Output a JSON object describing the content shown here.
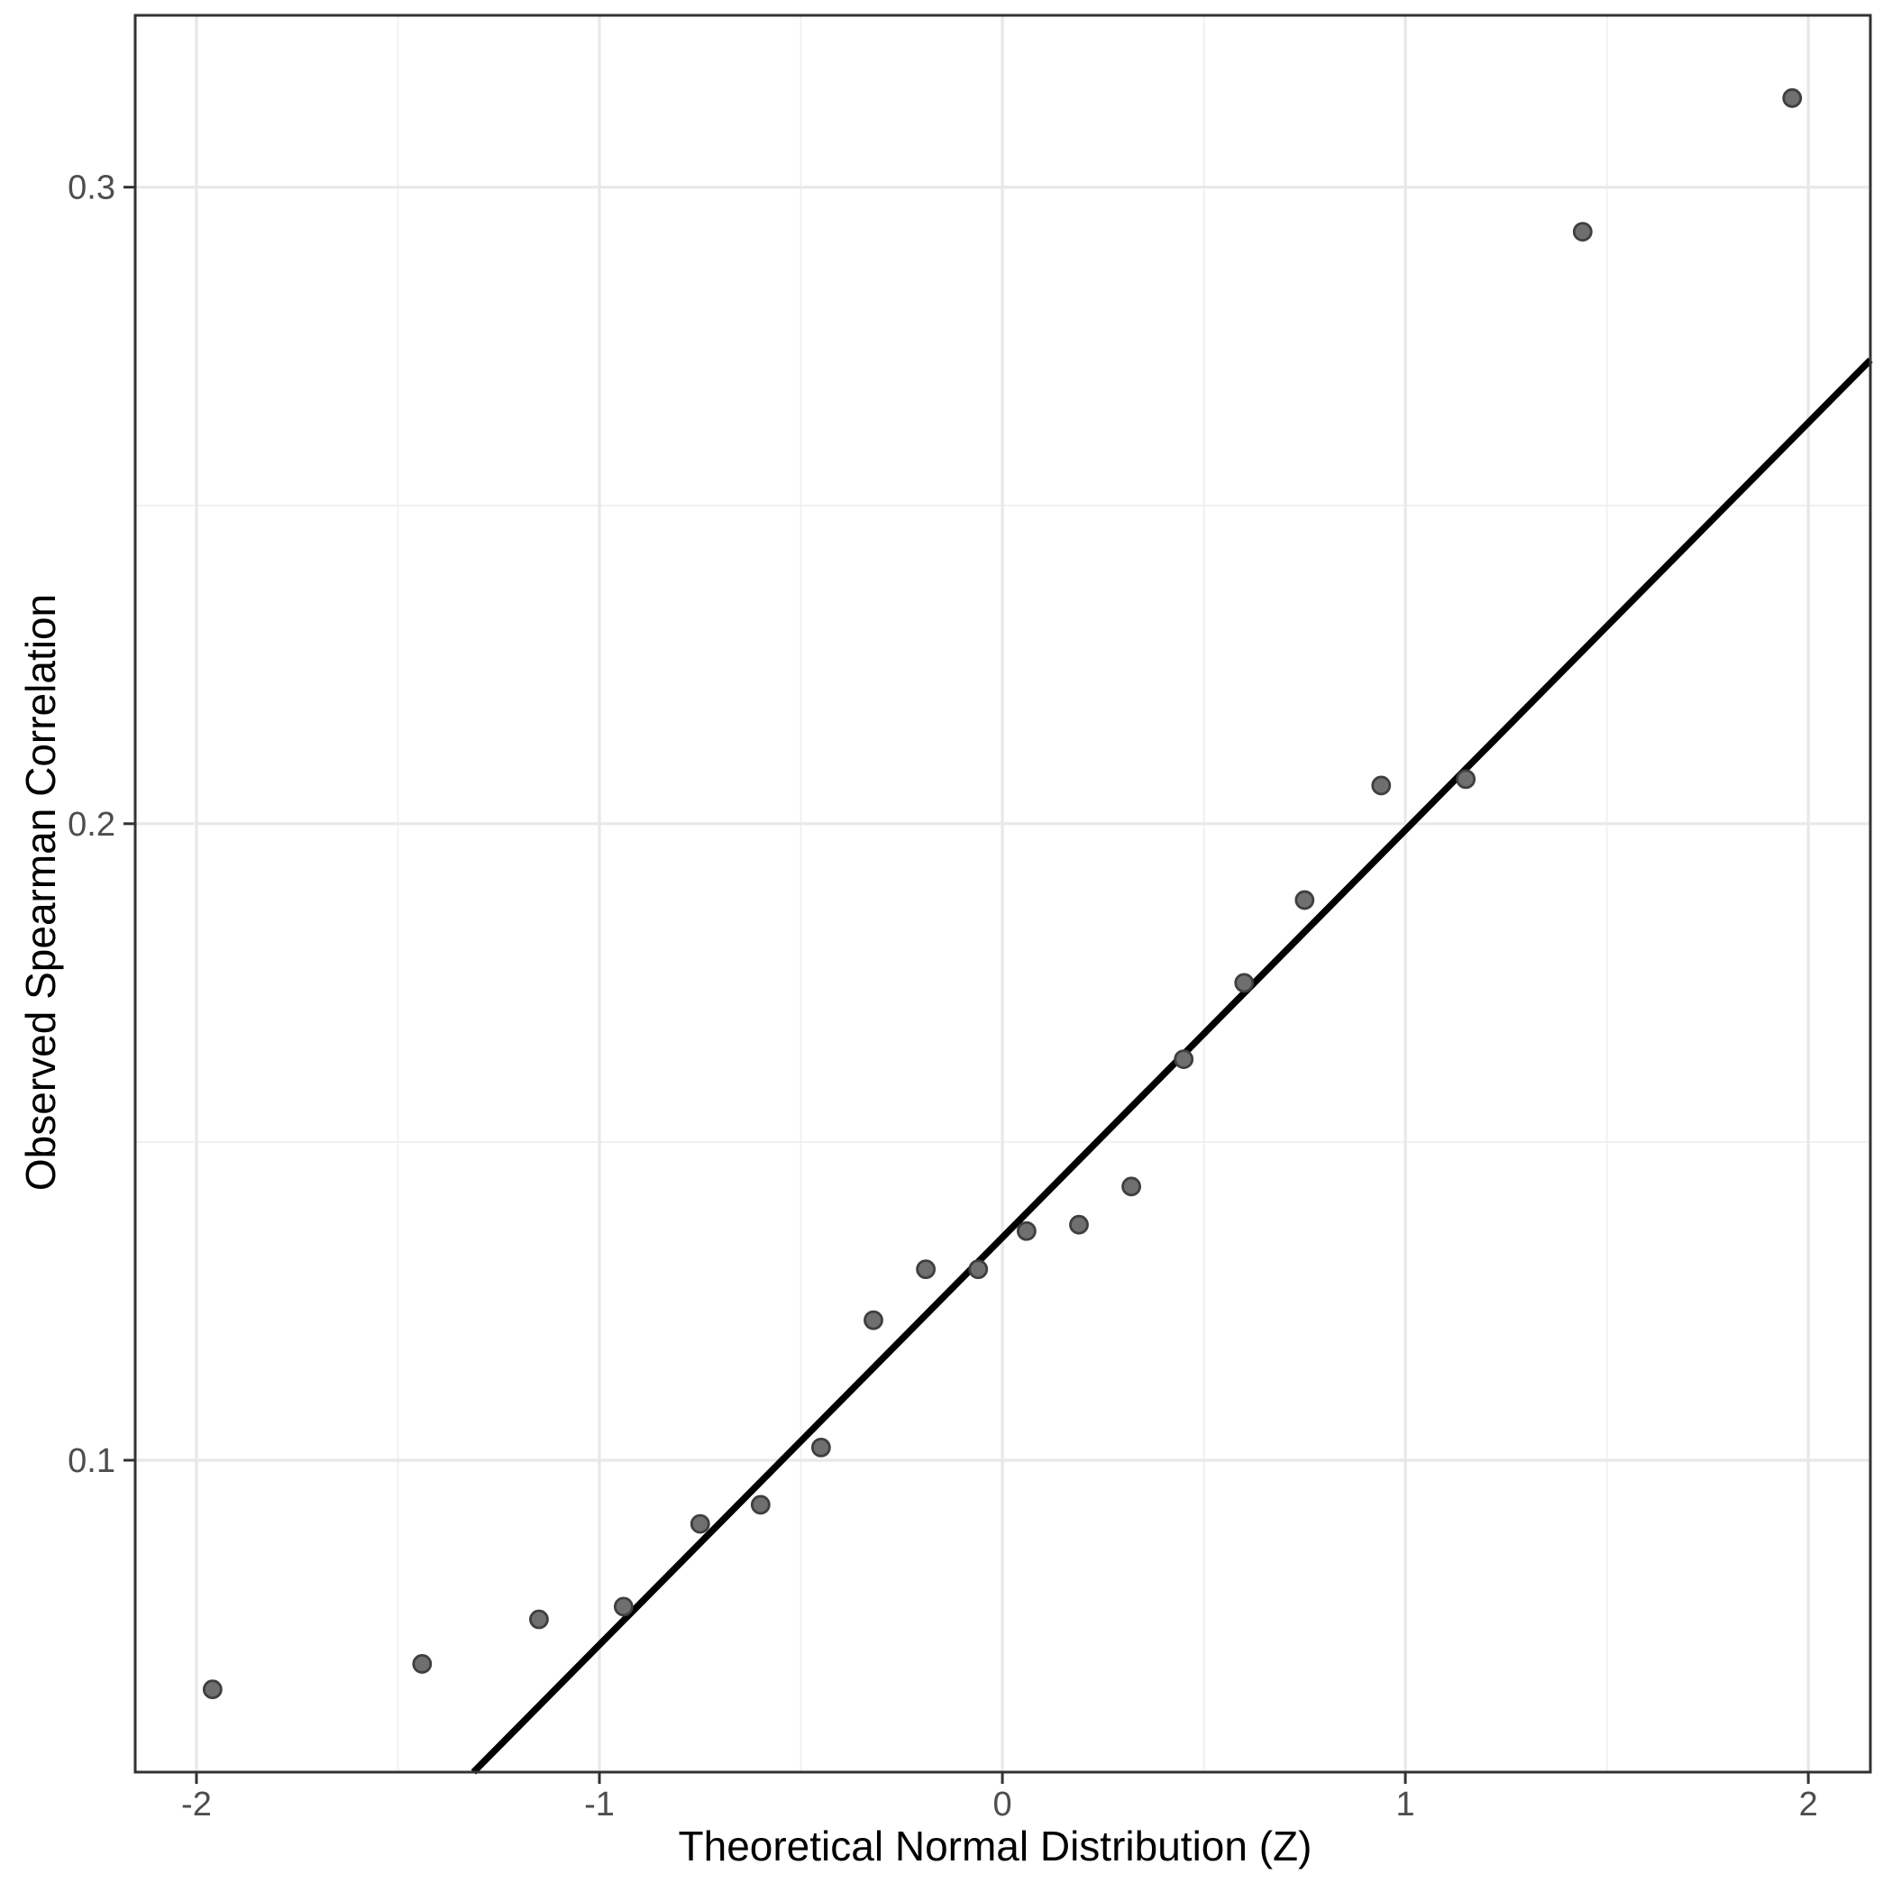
{
  "chart_data": {
    "type": "scatter",
    "title": "",
    "xlabel": "Theoretical Normal Distribution (Z)",
    "ylabel": "Observed Spearman Correlation",
    "xlim": [
      -2.152,
      2.154
    ],
    "ylim": [
      0.051,
      0.327
    ],
    "x_major_ticks": [
      -2,
      -1,
      0,
      1,
      2
    ],
    "x_tick_labels": [
      "-2",
      "-1",
      "0",
      "1",
      "2"
    ],
    "x_minor_ticks": [
      -1.5,
      -0.5,
      0.5,
      1.5
    ],
    "y_major_ticks": [
      0.1,
      0.2,
      0.3
    ],
    "y_tick_labels": [
      "0.1",
      "0.2",
      "0.3"
    ],
    "y_minor_ticks": [
      0.15,
      0.25
    ],
    "grid": "major-and-minor",
    "legend_position": "none",
    "series": [
      {
        "name": "observed-vs-theoretical-quantiles",
        "marker": "circle",
        "x": [
          -1.96,
          -1.44,
          -1.15,
          -0.94,
          -0.75,
          -0.6,
          -0.45,
          -0.32,
          -0.19,
          -0.06,
          0.06,
          0.19,
          0.32,
          0.45,
          0.6,
          0.75,
          0.94,
          1.15,
          1.44,
          1.96
        ],
        "y": [
          0.064,
          0.068,
          0.075,
          0.077,
          0.09,
          0.093,
          0.102,
          0.122,
          0.13,
          0.13,
          0.136,
          0.137,
          0.143,
          0.163,
          0.175,
          0.188,
          0.206,
          0.207,
          0.293,
          0.314
        ]
      }
    ],
    "reference_line": {
      "name": "qq-line",
      "intercept": 0.135,
      "slope": 0.064
    }
  },
  "style": {
    "background": "#ffffff",
    "panel_background": "#ffffff",
    "panel_border_color": "#333333",
    "grid_major_color": "#e8e8e8",
    "grid_minor_color": "#efefef",
    "tick_mark_color": "#333333",
    "tick_text_color": "#4d4d4d",
    "axis_title_color": "#000000",
    "point_fill": "#6f6f6f",
    "point_stroke": "#3f3f3f",
    "reference_line_color": "#000000"
  }
}
